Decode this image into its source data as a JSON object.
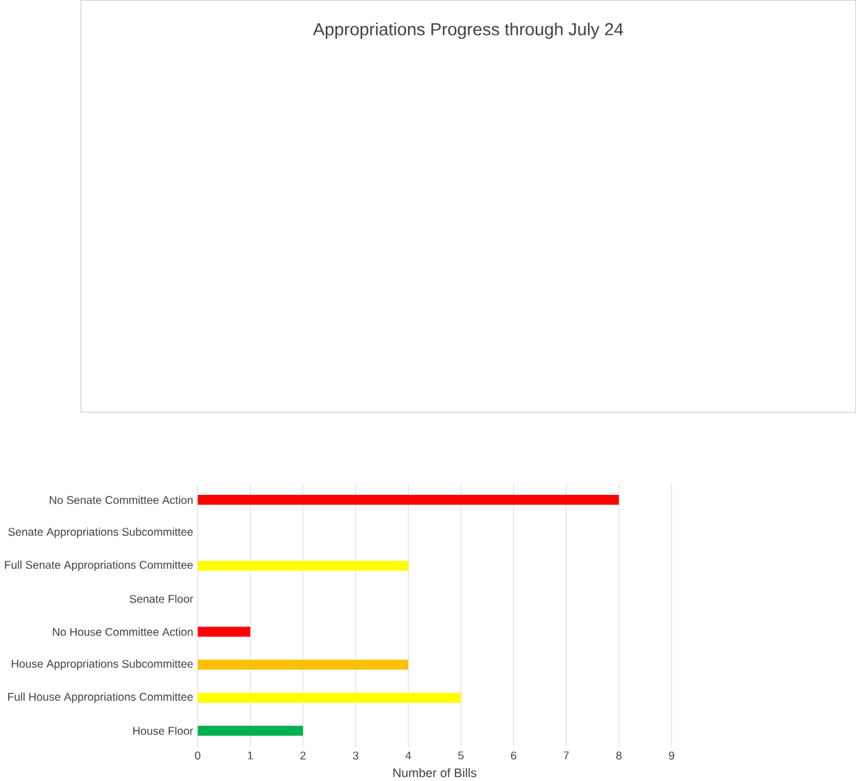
{
  "chart_data": {
    "type": "bar",
    "orientation": "horizontal",
    "title": "Appropriations Progress through July 24",
    "xlabel": "Number of Bills",
    "categories": [
      "No Senate Committee Action",
      "Senate Appropriations Subcommittee",
      "Full Senate Appropriations Committee",
      "Senate Floor",
      "No House Committee Action",
      "House Appropriations Subcommittee",
      "Full House Appropriations Committee",
      "House Floor"
    ],
    "values": [
      8,
      0,
      4,
      0,
      1,
      4,
      5,
      2
    ],
    "colors": [
      "#ff0000",
      "#ffff00",
      "#ffff00",
      "#00b050",
      "#ff0000",
      "#ffc000",
      "#ffff00",
      "#00b050"
    ],
    "xlim": [
      0,
      9
    ],
    "xticks": [
      0,
      1,
      2,
      3,
      4,
      5,
      6,
      7,
      8,
      9
    ],
    "grid": "x"
  }
}
